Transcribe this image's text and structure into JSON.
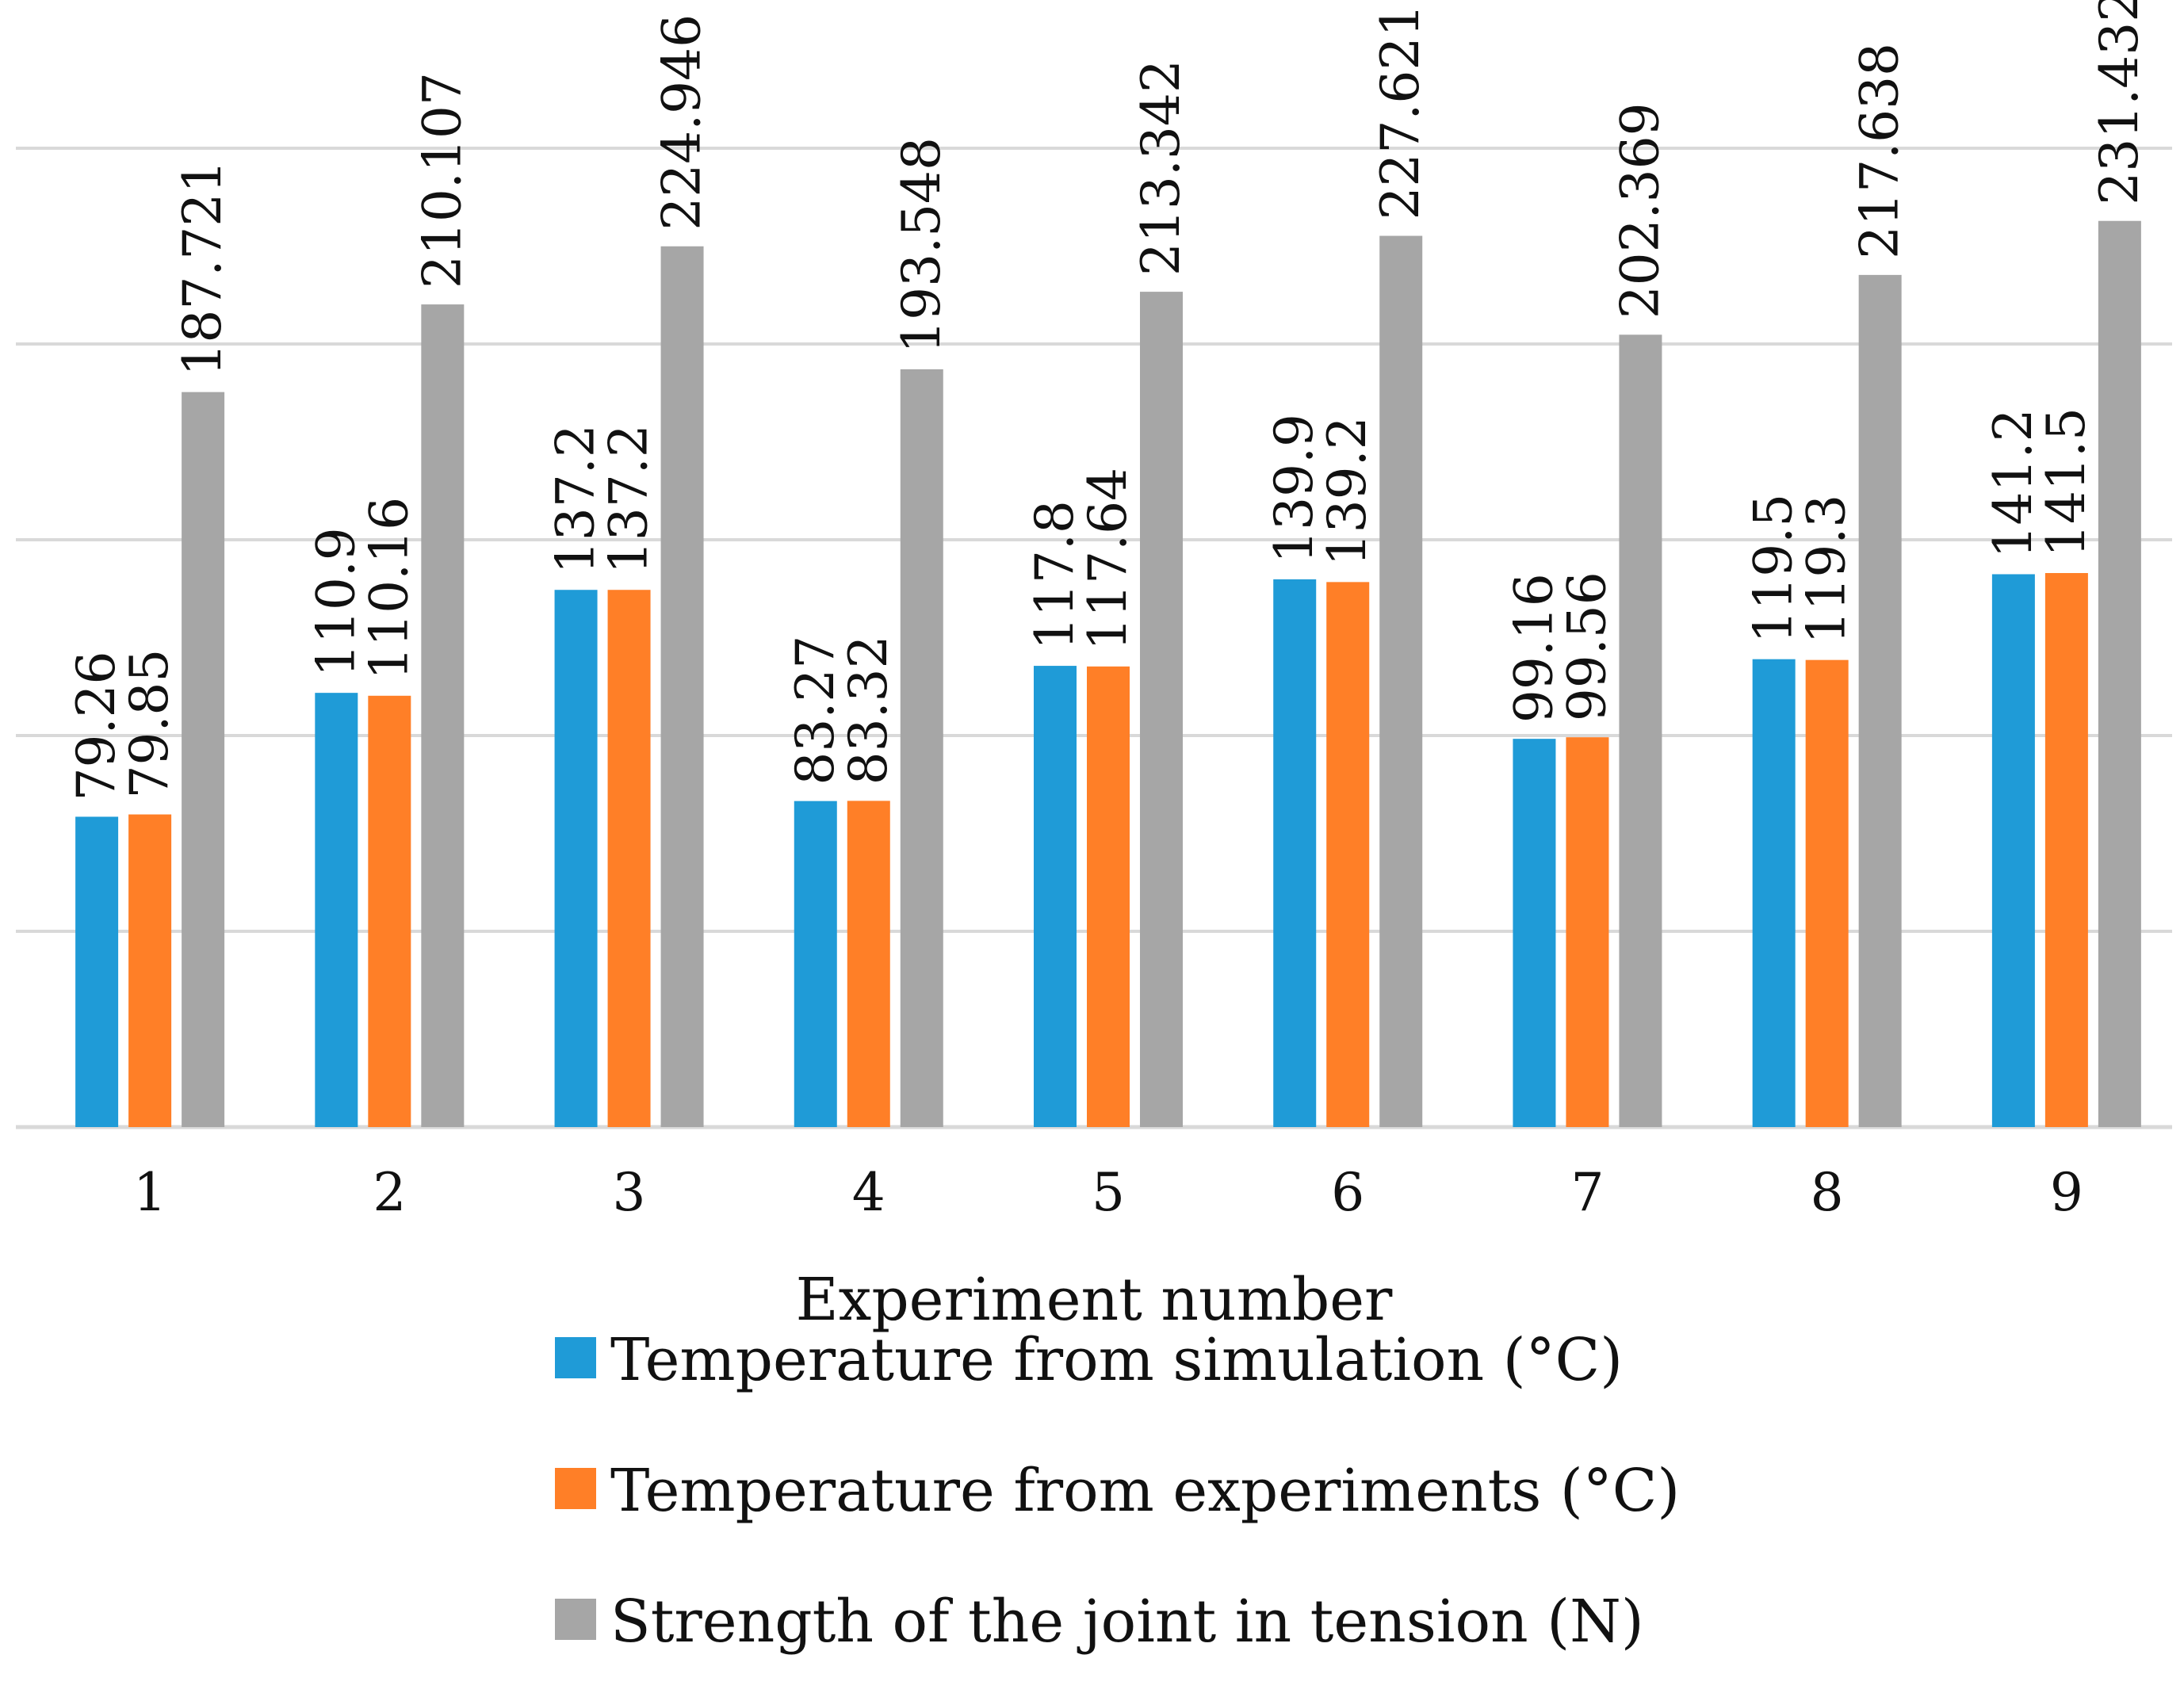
{
  "chart_data": {
    "type": "bar",
    "title": "",
    "xlabel": "Experiment number",
    "ylabel": "",
    "categories": [
      "1",
      "2",
      "3",
      "4",
      "5",
      "6",
      "7",
      "8",
      "9"
    ],
    "series": [
      {
        "name": "Temperature from simulation (°C)",
        "color": "#1F9BD7",
        "values": [
          79.26,
          110.9,
          137.2,
          83.27,
          117.8,
          139.9,
          99.16,
          119.5,
          141.2
        ],
        "labels": [
          "79.26",
          "110.9",
          "137.2",
          "83.27",
          "117.8",
          "139.9",
          "99.16",
          "119.5",
          "141.2"
        ]
      },
      {
        "name": "Temperature from experiments (°C)",
        "color": "#FF7F27",
        "values": [
          79.85,
          110.16,
          137.2,
          83.32,
          117.64,
          139.2,
          99.56,
          119.3,
          141.5
        ],
        "labels": [
          "79.85",
          "110.16",
          "137.2",
          "83.32",
          "117.64",
          "139.2",
          "99.56",
          "119.3",
          "141.5"
        ]
      },
      {
        "name": "Strength of the joint in tension (N)",
        "color": "#A6A6A6",
        "values": [
          187.721,
          210.107,
          224.946,
          193.548,
          213.342,
          227.621,
          202.369,
          217.638,
          231.432
        ],
        "labels": [
          "187.721",
          "210.107",
          "224.946",
          "193.548",
          "213.342",
          "227.621",
          "202.369",
          "217.638",
          "231.432"
        ]
      }
    ],
    "ylim": [
      0,
      250
    ],
    "gridlines": [
      0,
      50,
      100,
      150,
      200,
      250
    ],
    "grid": true,
    "y_tick_labels_shown": false,
    "legend_position": "bottom",
    "data_labels": "rotated-vertical",
    "axis_color": "#D9D9D9",
    "grid_color": "#D9D9D9"
  }
}
